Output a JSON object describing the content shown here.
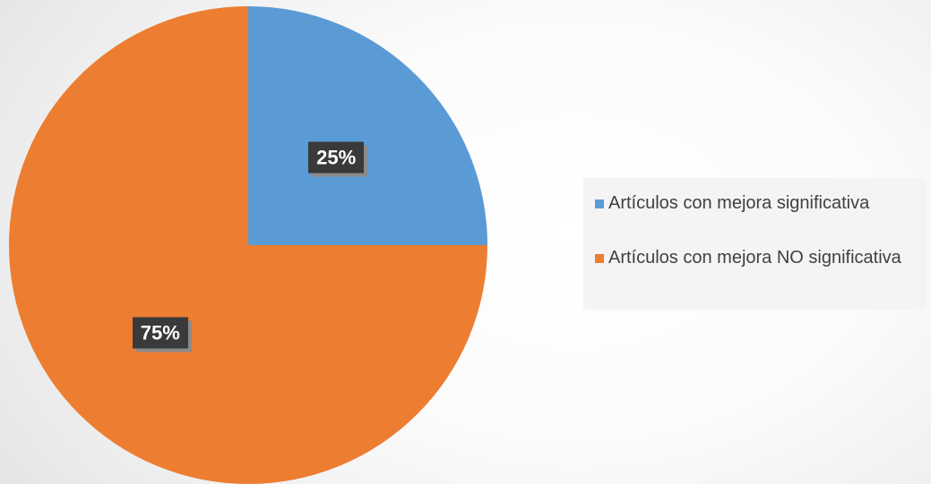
{
  "chart_data": {
    "type": "pie",
    "slices": [
      {
        "label": "Artículos con mejora significativa",
        "value": 25,
        "display": "25%",
        "color": "#5b9bd5"
      },
      {
        "label": "Artículos con mejora NO significativa",
        "value": 75,
        "display": "75%",
        "color": "#ed7d31"
      }
    ],
    "start_angle": "12 o'clock",
    "direction": "clockwise",
    "legend_position": "right",
    "title": ""
  }
}
